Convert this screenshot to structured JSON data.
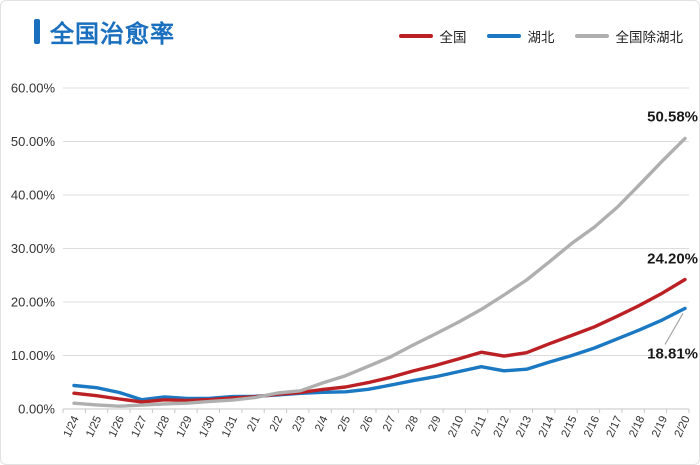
{
  "header": {
    "title": "全国治愈率"
  },
  "theme": {
    "accent_color": "#1A6FBF",
    "grid_color": "#dcdcdc",
    "axis_color": "#c6c6c6",
    "tick_label_color": "#333333",
    "end_label_color": "#1a1a1a"
  },
  "legend": {
    "items": [
      {
        "id": "national",
        "label": "全国",
        "color": "#BB2024"
      },
      {
        "id": "hubei",
        "label": "湖北",
        "color": "#1B78C2"
      },
      {
        "id": "non-hubei",
        "label": "全国除湖北",
        "color": "#AFAFAF"
      }
    ]
  },
  "chart_data": {
    "type": "line",
    "title": "全国治愈率",
    "categories": [
      "1/24",
      "1/25",
      "1/26",
      "1/27",
      "1/28",
      "1/29",
      "1/30",
      "1/31",
      "2/1",
      "2/2",
      "2/3",
      "2/4",
      "2/5",
      "2/6",
      "2/7",
      "2/8",
      "2/9",
      "2/10",
      "2/11",
      "2/12",
      "2/13",
      "2/14",
      "2/15",
      "2/16",
      "2/17",
      "2/18",
      "2/19",
      "2/20"
    ],
    "series": [
      {
        "id": "national",
        "name": "全国",
        "color": "#BB2024",
        "values": [
          2.95,
          2.48,
          1.86,
          1.33,
          1.72,
          1.61,
          1.76,
          2.06,
          2.28,
          2.76,
          3.09,
          3.67,
          4.12,
          4.94,
          5.93,
          7.12,
          8.17,
          9.37,
          10.61,
          9.88,
          10.53,
          12.18,
          13.75,
          15.37,
          17.33,
          19.38,
          21.66,
          24.2
        ],
        "end_label": "24.20%",
        "end_label_dy": -16,
        "leader": false
      },
      {
        "id": "hubei",
        "name": "湖北",
        "color": "#1B78C2",
        "values": [
          4.39,
          3.99,
          3.09,
          1.73,
          2.25,
          1.96,
          2.0,
          2.32,
          2.37,
          2.64,
          2.93,
          3.12,
          3.22,
          3.69,
          4.47,
          5.31,
          6.06,
          7.0,
          7.91,
          7.14,
          7.43,
          8.77,
          10.0,
          11.41,
          13.11,
          14.8,
          16.66,
          18.81
        ],
        "end_label": "18.81%",
        "end_label_dy": 50,
        "leader": true
      },
      {
        "id": "non-hubei",
        "name": "全国除湖北",
        "color": "#AFAFAF",
        "values": [
          1.08,
          0.76,
          0.53,
          0.72,
          0.95,
          1.09,
          1.42,
          1.66,
          2.13,
          2.99,
          3.41,
          4.87,
          6.23,
          7.99,
          9.75,
          11.98,
          14.1,
          16.26,
          18.61,
          21.3,
          24.11,
          27.49,
          30.98,
          34.01,
          37.68,
          41.97,
          46.38,
          50.58
        ],
        "end_label": "50.58%",
        "end_label_dy": -17,
        "leader": false
      }
    ],
    "ylim": [
      0,
      60
    ],
    "ytick_labels": [
      "0.00%",
      "10.00%",
      "20.00%",
      "30.00%",
      "40.00%",
      "50.00%",
      "60.00%"
    ],
    "grid": true,
    "legend_position": "top-right",
    "x_label_rotation": -65,
    "draw_order": [
      "hubei",
      "national",
      "non-hubei"
    ]
  }
}
